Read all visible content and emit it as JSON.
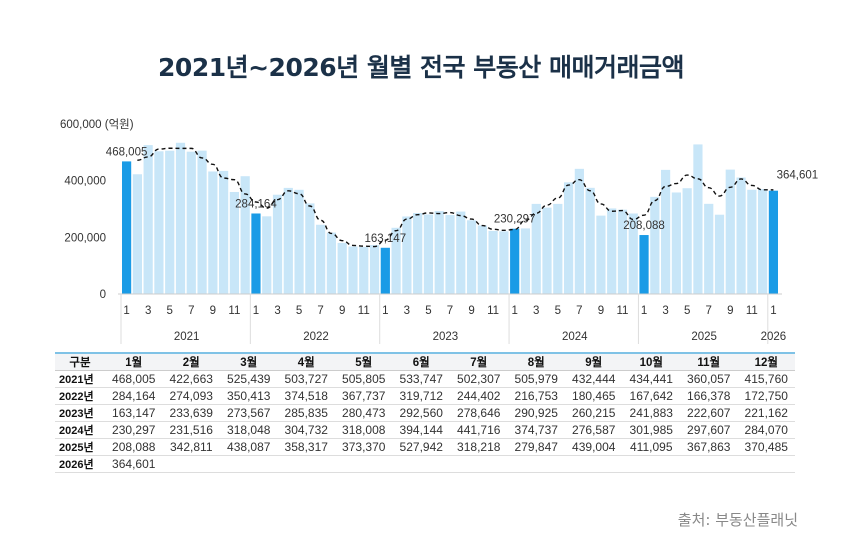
{
  "title": "2021년~2026년 월별 전국 부동산 매매거래금액",
  "source": "출처: 부동산플래닛",
  "colors": {
    "bar": "#c8e6f8",
    "bar_highlight": "#1a9be6",
    "title": "#1b3148",
    "trend_line": "#111111"
  },
  "chart_data": {
    "type": "bar",
    "unit_label": "600,000 (억원)",
    "ylim": [
      0,
      600000
    ],
    "yticks": [
      "0",
      "200,000",
      "400,000"
    ],
    "grid": false,
    "years": [
      "2021",
      "2022",
      "2023",
      "2024",
      "2025",
      "2026"
    ],
    "month_ticks": [
      "1",
      "3",
      "5",
      "7",
      "9",
      "11"
    ],
    "series": [
      {
        "year": "2021",
        "values": [
          468005,
          422663,
          525439,
          503727,
          505805,
          533747,
          502307,
          505979,
          432444,
          434441,
          360057,
          415760
        ]
      },
      {
        "year": "2022",
        "values": [
          284164,
          274093,
          350413,
          374518,
          367737,
          319712,
          244402,
          216753,
          180465,
          167642,
          166378,
          172750
        ]
      },
      {
        "year": "2023",
        "values": [
          163147,
          233639,
          273567,
          285835,
          280473,
          292560,
          278646,
          290925,
          260215,
          241883,
          222607,
          221162
        ]
      },
      {
        "year": "2024",
        "values": [
          230297,
          231516,
          318048,
          304732,
          318008,
          394144,
          441716,
          374737,
          276587,
          301985,
          297607,
          284070
        ]
      },
      {
        "year": "2025",
        "values": [
          208088,
          342811,
          438087,
          358317,
          373370,
          527942,
          318218,
          279847,
          439004,
          411095,
          367863,
          370485
        ]
      },
      {
        "year": "2026",
        "values": [
          364601
        ]
      }
    ],
    "data_labels": [
      "468,005",
      "284,164",
      "163,147",
      "230,297",
      "208,088",
      "364,601"
    ],
    "trend": "dashed moving-average line"
  },
  "table": {
    "header": [
      "구분",
      "1월",
      "2월",
      "3월",
      "4월",
      "5월",
      "6월",
      "7월",
      "8월",
      "9월",
      "10월",
      "11월",
      "12월"
    ],
    "rows": [
      [
        "2021년",
        "468,005",
        "422,663",
        "525,439",
        "503,727",
        "505,805",
        "533,747",
        "502,307",
        "505,979",
        "432,444",
        "434,441",
        "360,057",
        "415,760"
      ],
      [
        "2022년",
        "284,164",
        "274,093",
        "350,413",
        "374,518",
        "367,737",
        "319,712",
        "244,402",
        "216,753",
        "180,465",
        "167,642",
        "166,378",
        "172,750"
      ],
      [
        "2023년",
        "163,147",
        "233,639",
        "273,567",
        "285,835",
        "280,473",
        "292,560",
        "278,646",
        "290,925",
        "260,215",
        "241,883",
        "222,607",
        "221,162"
      ],
      [
        "2024년",
        "230,297",
        "231,516",
        "318,048",
        "304,732",
        "318,008",
        "394,144",
        "441,716",
        "374,737",
        "276,587",
        "301,985",
        "297,607",
        "284,070"
      ],
      [
        "2025년",
        "208,088",
        "342,811",
        "438,087",
        "358,317",
        "373,370",
        "527,942",
        "318,218",
        "279,847",
        "439,004",
        "411,095",
        "367,863",
        "370,485"
      ],
      [
        "2026년",
        "364,601",
        "",
        "",
        "",
        "",
        "",
        "",
        "",
        "",
        "",
        "",
        ""
      ]
    ]
  }
}
